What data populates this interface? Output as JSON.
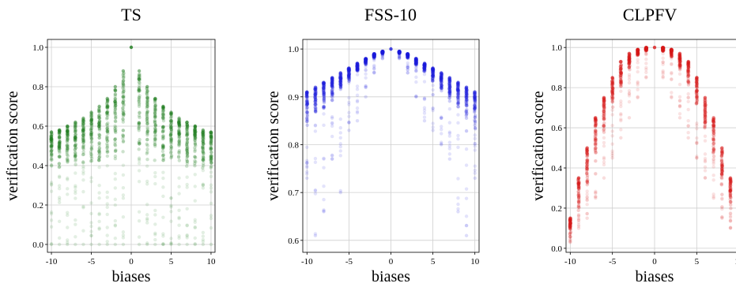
{
  "chart_data": [
    {
      "type": "scatter",
      "title": "TS",
      "xlabel": "biases",
      "ylabel": "verification score",
      "color": "#1a7a1a",
      "xlim": [
        -10.5,
        10.5
      ],
      "ylim": [
        -0.04,
        1.04
      ],
      "xticks": [
        -10,
        -5,
        0,
        5,
        10
      ],
      "xtick_labels": [
        "-10",
        "-5",
        "0",
        "5",
        "10"
      ],
      "yticks": [
        0.0,
        0.2,
        0.4,
        0.6,
        0.8,
        1.0
      ],
      "ytick_labels": [
        "0.0",
        "0.2",
        "0.4",
        "0.6",
        "0.8",
        "1.0"
      ],
      "grid": true,
      "series": [
        {
          "x": [
            -10,
            -9,
            -8,
            -7,
            -6,
            -5,
            -4,
            -3,
            -2,
            -1,
            0,
            1,
            2,
            3,
            4,
            5,
            6,
            7,
            8,
            9,
            10
          ],
          "max": [
            0.57,
            0.58,
            0.6,
            0.62,
            0.64,
            0.67,
            0.7,
            0.74,
            0.8,
            0.88,
            1.0,
            0.88,
            0.8,
            0.74,
            0.7,
            0.67,
            0.64,
            0.62,
            0.6,
            0.58,
            0.57
          ],
          "dense_min": [
            0.38,
            0.38,
            0.39,
            0.39,
            0.4,
            0.4,
            0.4,
            0.41,
            0.42,
            0.44,
            1.0,
            0.44,
            0.42,
            0.41,
            0.4,
            0.4,
            0.4,
            0.39,
            0.39,
            0.38,
            0.38
          ],
          "min": [
            0.0,
            0.0,
            0.0,
            0.0,
            0.0,
            0.0,
            0.0,
            0.0,
            0.0,
            0.0,
            1.0,
            0.0,
            0.0,
            0.0,
            0.0,
            0.0,
            0.0,
            0.0,
            0.0,
            0.0,
            0.0
          ]
        }
      ]
    },
    {
      "type": "scatter",
      "title": "FSS-10",
      "xlabel": "biases",
      "ylabel": "verification score",
      "color": "#1a1adc",
      "xlim": [
        -10.5,
        10.5
      ],
      "ylim": [
        0.575,
        1.02
      ],
      "xticks": [
        -10,
        -5,
        0,
        5,
        10
      ],
      "xtick_labels": [
        "-10",
        "-5",
        "0",
        "5",
        "10"
      ],
      "yticks": [
        0.6,
        0.7,
        0.8,
        0.9,
        1.0
      ],
      "ytick_labels": [
        "0.6",
        "0.7",
        "0.8",
        "0.9",
        "1.0"
      ],
      "grid": true,
      "series": [
        {
          "x": [
            -10,
            -9,
            -8,
            -7,
            -6,
            -5,
            -4,
            -3,
            -2,
            -1,
            0,
            1,
            2,
            3,
            4,
            5,
            6,
            7,
            8,
            9,
            10
          ],
          "max": [
            0.91,
            0.92,
            0.93,
            0.94,
            0.95,
            0.96,
            0.97,
            0.98,
            0.99,
            0.995,
            1.0,
            0.995,
            0.99,
            0.98,
            0.97,
            0.96,
            0.95,
            0.94,
            0.93,
            0.92,
            0.91
          ],
          "dense_min": [
            0.83,
            0.85,
            0.87,
            0.89,
            0.91,
            0.93,
            0.95,
            0.965,
            0.98,
            0.99,
            1.0,
            0.99,
            0.98,
            0.965,
            0.95,
            0.93,
            0.91,
            0.89,
            0.87,
            0.85,
            0.83
          ],
          "min": [
            0.73,
            0.61,
            0.66,
            0.77,
            0.7,
            0.83,
            0.85,
            0.9,
            0.95,
            0.98,
            1.0,
            0.98,
            0.95,
            0.9,
            0.85,
            0.83,
            0.8,
            0.77,
            0.66,
            0.61,
            0.73
          ]
        }
      ]
    },
    {
      "type": "scatter",
      "title": "CLPFV",
      "xlabel": "biases",
      "ylabel": "verification score",
      "color": "#d81818",
      "xlim": [
        -10.5,
        10.5
      ],
      "ylim": [
        -0.02,
        1.04
      ],
      "xticks": [
        -10,
        -5,
        0,
        5,
        10
      ],
      "xtick_labels": [
        "-10",
        "-5",
        "0",
        "5",
        "10"
      ],
      "yticks": [
        0.0,
        0.2,
        0.4,
        0.6,
        0.8,
        1.0
      ],
      "ytick_labels": [
        "0.0",
        "0.2",
        "0.4",
        "0.6",
        "0.8",
        "1.0"
      ],
      "grid": true,
      "series": [
        {
          "x": [
            -10,
            -9,
            -8,
            -7,
            -6,
            -5,
            -4,
            -3,
            -2,
            -1,
            0,
            1,
            2,
            3,
            4,
            5,
            6,
            7,
            8,
            9,
            10
          ],
          "max": [
            0.15,
            0.35,
            0.5,
            0.65,
            0.75,
            0.85,
            0.93,
            0.97,
            0.99,
            1.0,
            1.0,
            1.0,
            0.99,
            0.97,
            0.93,
            0.85,
            0.75,
            0.65,
            0.5,
            0.35,
            0.15
          ],
          "dense_min": [
            0.06,
            0.18,
            0.3,
            0.45,
            0.58,
            0.7,
            0.8,
            0.88,
            0.95,
            0.98,
            1.0,
            0.98,
            0.95,
            0.88,
            0.8,
            0.7,
            0.58,
            0.45,
            0.3,
            0.18,
            0.06
          ],
          "min": [
            0.03,
            0.1,
            0.15,
            0.25,
            0.35,
            0.45,
            0.55,
            0.65,
            0.75,
            0.85,
            1.0,
            0.85,
            0.75,
            0.65,
            0.55,
            0.45,
            0.35,
            0.25,
            0.15,
            0.1,
            0.03
          ]
        }
      ]
    }
  ]
}
